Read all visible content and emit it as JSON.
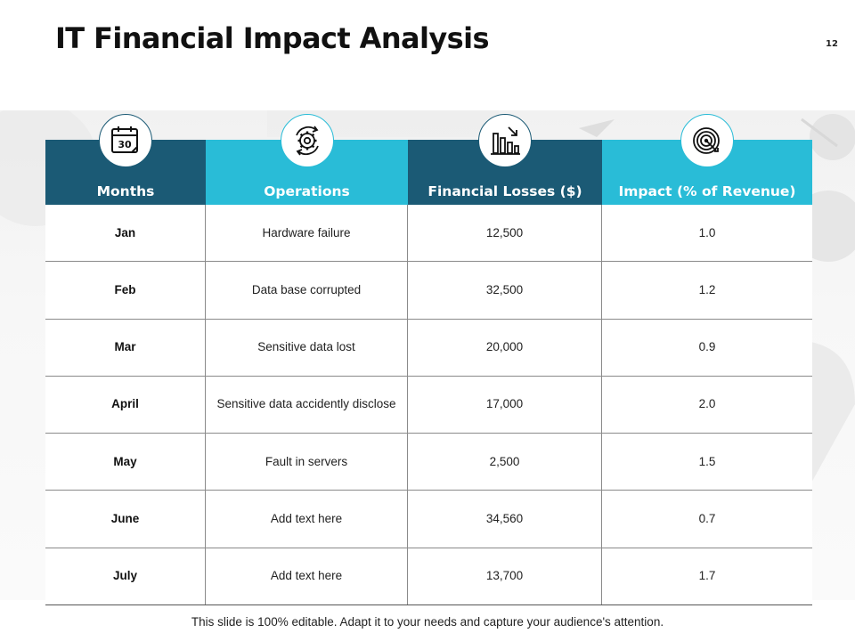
{
  "slide": {
    "title": "IT Financial Impact Analysis",
    "page_number": "12",
    "footer": "This slide is 100% editable. Adapt it to your needs and capture your audience's attention."
  },
  "table": {
    "headers": [
      {
        "label": "Months",
        "icon": "calendar-icon",
        "calendar_day": "30"
      },
      {
        "label": "Operations",
        "icon": "gear-cycle-icon"
      },
      {
        "label": "Financial Losses ($)",
        "icon": "declining-bar-chart-icon"
      },
      {
        "label": "Impact  (% of Revenue)",
        "icon": "target-icon"
      }
    ],
    "rows": [
      {
        "month": "Jan",
        "operation": "Hardware failure",
        "loss": "12,500",
        "impact": "1.0"
      },
      {
        "month": "Feb",
        "operation": "Data base corrupted",
        "loss": "32,500",
        "impact": "1.2"
      },
      {
        "month": "Mar",
        "operation": "Sensitive data lost",
        "loss": "20,000",
        "impact": "0.9"
      },
      {
        "month": "April",
        "operation": "Sensitive data accidently disclose",
        "loss": "17,000",
        "impact": "2.0"
      },
      {
        "month": "May",
        "operation": "Fault in servers",
        "loss": "2,500",
        "impact": "1.5"
      },
      {
        "month": "June",
        "operation": "Add text here",
        "loss": "34,560",
        "impact": "0.7"
      },
      {
        "month": "July",
        "operation": "Add text here",
        "loss": "13,700",
        "impact": "1.7"
      }
    ]
  },
  "colors": {
    "dark_teal": "#1b5a75",
    "light_cyan": "#29bcd7"
  }
}
